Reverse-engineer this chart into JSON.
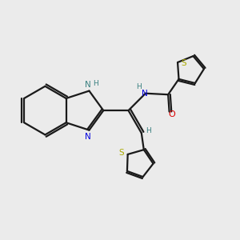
{
  "background_color": "#ebebeb",
  "bond_color": "#1a1a1a",
  "N_color": "#0000dd",
  "NH_color": "#3a8080",
  "O_color": "#dd0000",
  "S_color": "#aaaa00",
  "H_color": "#3a8080",
  "figsize": [
    3.0,
    3.0
  ],
  "dpi": 100,
  "xlim": [
    0,
    10
  ],
  "ylim": [
    0,
    10
  ]
}
